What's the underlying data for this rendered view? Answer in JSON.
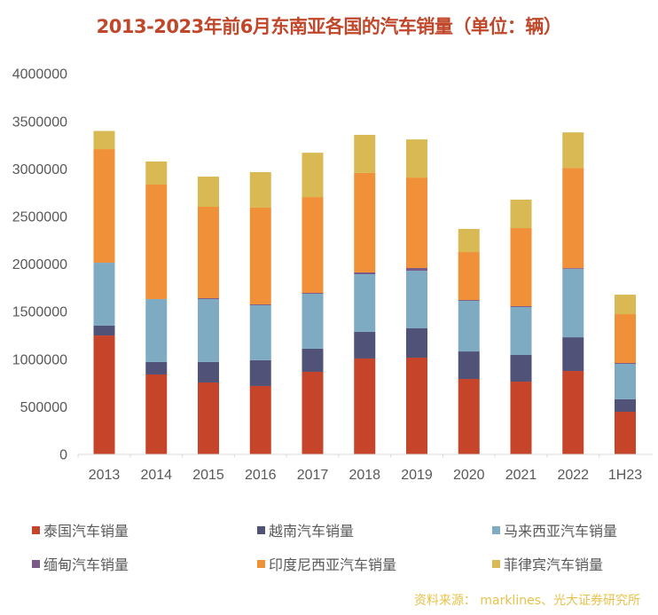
{
  "chart_data": {
    "type": "bar",
    "stacked": true,
    "title": "2013-2023年前6月东南亚各国的汽车销量（单位：辆）",
    "xlabel": "",
    "ylabel": "",
    "ylim": [
      0,
      4000000
    ],
    "yticks": [
      "0",
      "500000",
      "1000000",
      "1500000",
      "2000000",
      "2500000",
      "3000000",
      "3500000",
      "4000000"
    ],
    "ytick_values": [
      0,
      500000,
      1000000,
      1500000,
      2000000,
      2500000,
      3000000,
      3500000,
      4000000
    ],
    "grid": false,
    "legend_position": "bottom",
    "categories": [
      "2013",
      "2014",
      "2015",
      "2016",
      "2017",
      "2018",
      "2019",
      "2020",
      "2021",
      "2022",
      "1H23"
    ],
    "series": [
      {
        "name": "泰国汽车销量",
        "color": "#c6442a",
        "values": [
          1245000,
          835000,
          751000,
          714000,
          863000,
          1003000,
          1012000,
          788000,
          760000,
          872000,
          443000
        ]
      },
      {
        "name": "越南汽车销量",
        "color": "#515277",
        "values": [
          103000,
          131000,
          215000,
          271000,
          243000,
          280000,
          308000,
          289000,
          280000,
          354000,
          131000
        ]
      },
      {
        "name": "马来西亚汽车销量",
        "color": "#7fabc2",
        "values": [
          662000,
          662000,
          662000,
          578000,
          578000,
          606000,
          606000,
          532000,
          504000,
          718000,
          373000
        ]
      },
      {
        "name": "缅甸汽车销量",
        "color": "#7a5a86",
        "values": [
          0,
          0,
          9000,
          9000,
          9000,
          19000,
          28000,
          9000,
          9000,
          9000,
          9000
        ]
      },
      {
        "name": "印度尼西亚汽车销量",
        "color": "#f0913a",
        "values": [
          1194000,
          1203000,
          961000,
          1017000,
          1007000,
          1045000,
          951000,
          504000,
          821000,
          1054000,
          513000
        ]
      },
      {
        "name": "菲律宾汽车销量",
        "color": "#d9b954",
        "values": [
          191000,
          243000,
          317000,
          373000,
          466000,
          401000,
          401000,
          243000,
          299000,
          373000,
          205000
        ]
      }
    ]
  },
  "source": "资料来源： marklines、光大证券研究所"
}
